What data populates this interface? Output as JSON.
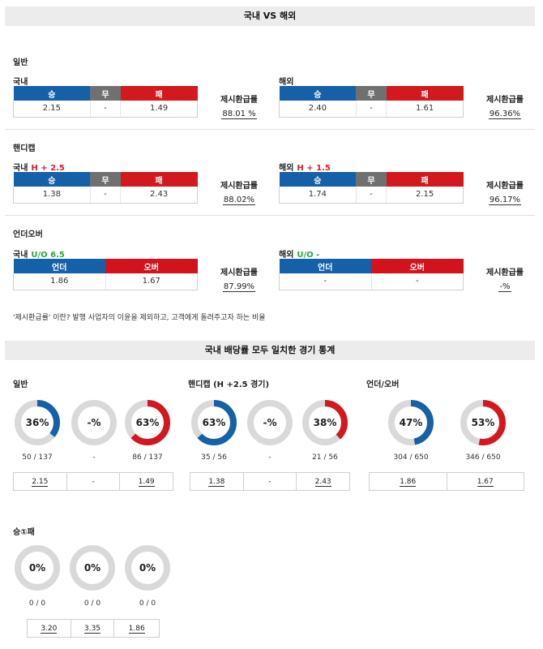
{
  "header": {
    "title": "국내 VS 해외"
  },
  "colors": {
    "blue": "#1660a8",
    "gray": "#707070",
    "red": "#d31820",
    "ring_bg": "#d9d9d9"
  },
  "sections": {
    "general": "일반",
    "handicap": "핸디캡",
    "overunder": "언더오버"
  },
  "ratio_label": "제시환급률",
  "general": {
    "dom": {
      "title": "국내",
      "heads": [
        "승",
        "무",
        "패"
      ],
      "values": [
        "2.15",
        "-",
        "1.49"
      ],
      "ratio": "88.01 %"
    },
    "ovs": {
      "title": "해외",
      "heads": [
        "승",
        "무",
        "패"
      ],
      "values": [
        "2.40",
        "-",
        "1.61"
      ],
      "ratio": "96.36%"
    }
  },
  "handicap": {
    "dom": {
      "title": "국내",
      "tag": "H + 2.5",
      "heads": [
        "승",
        "무",
        "패"
      ],
      "values": [
        "1.38",
        "-",
        "2.43"
      ],
      "ratio": "88.02%"
    },
    "ovs": {
      "title": "해외",
      "tag": "H + 1.5",
      "heads": [
        "승",
        "무",
        "패"
      ],
      "values": [
        "1.74",
        "-",
        "2.15"
      ],
      "ratio": "96.17%"
    }
  },
  "overunder": {
    "dom": {
      "title": "국내",
      "tag": "U/O 6.5",
      "heads": [
        "언더",
        "오버"
      ],
      "values": [
        "1.86",
        "1.67"
      ],
      "ratio": "87.99%"
    },
    "ovs": {
      "title": "해외",
      "tag": "U/O -",
      "heads": [
        "언더",
        "오버"
      ],
      "values": [
        "-",
        "-"
      ],
      "ratio": "-%"
    }
  },
  "note": "'제시환급률' 이란? 발행 사업자의 이윤을 제외하고, 고객에게 돌려주고자 하는 비율",
  "stats_header": "국내 배당률 모두 일치한 경기 통계",
  "stats": {
    "general": {
      "title": "일반",
      "donuts": [
        {
          "pct": "36%",
          "value": 0.36,
          "color": "blue",
          "count": "50 / 137"
        },
        {
          "pct": "-%",
          "value": 0,
          "color": "gray",
          "count": "-"
        },
        {
          "pct": "63%",
          "value": 0.63,
          "color": "red",
          "count": "86 / 137"
        }
      ],
      "odds": [
        "2.15",
        "-",
        "1.49"
      ]
    },
    "handicap": {
      "title": "핸디캡 (H +2.5 경기)",
      "donuts": [
        {
          "pct": "63%",
          "value": 0.63,
          "color": "blue",
          "count": "35 / 56"
        },
        {
          "pct": "-%",
          "value": 0,
          "color": "gray",
          "count": "-"
        },
        {
          "pct": "38%",
          "value": 0.38,
          "color": "red",
          "count": "21 / 56"
        }
      ],
      "odds": [
        "1.38",
        "-",
        "2.43"
      ]
    },
    "overunder": {
      "title": "언더/오버",
      "donuts": [
        {
          "pct": "47%",
          "value": 0.47,
          "color": "blue",
          "count": "304 / 650"
        },
        {
          "pct": "53%",
          "value": 0.53,
          "color": "red",
          "count": "346 / 650"
        }
      ],
      "odds": [
        "1.86",
        "1.67"
      ]
    },
    "win1": {
      "title": "승①패",
      "donuts": [
        {
          "pct": "0%",
          "value": 0,
          "color": "blue",
          "count": "0 / 0"
        },
        {
          "pct": "0%",
          "value": 0,
          "color": "gray",
          "count": "0 / 0"
        },
        {
          "pct": "0%",
          "value": 0,
          "color": "red",
          "count": "0 / 0"
        }
      ],
      "odds": [
        "3.20",
        "3.35",
        "1.86"
      ]
    }
  }
}
